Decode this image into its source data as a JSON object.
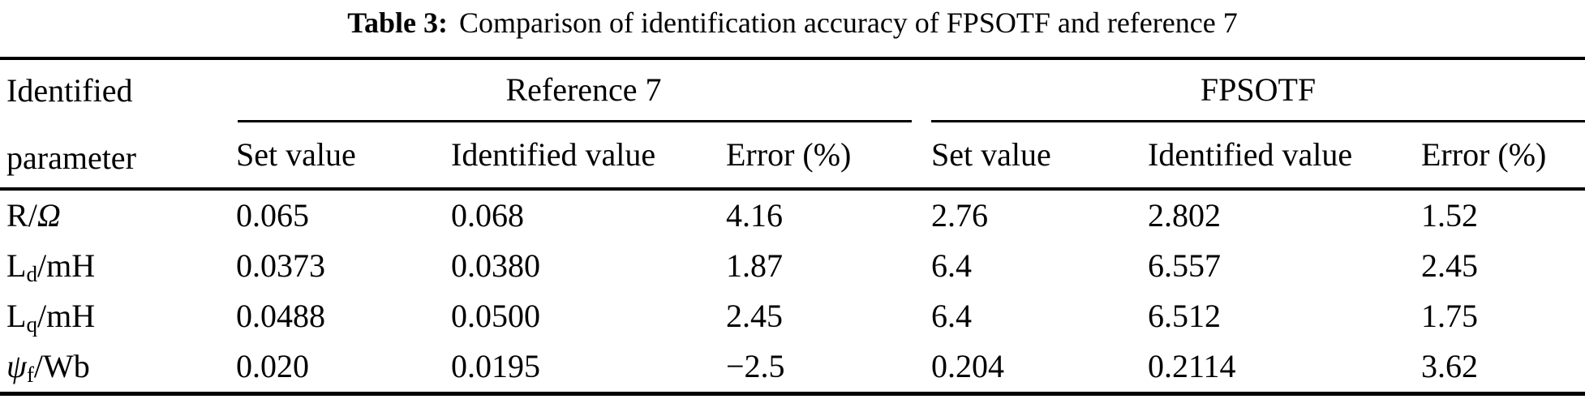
{
  "title": {
    "bold": "Table 3:",
    "text": "Comparison of identification accuracy of FPSOTF and reference 7"
  },
  "table": {
    "row_header": {
      "line1": "Identified",
      "line2": "parameter"
    },
    "groups": [
      {
        "label": "Reference 7"
      },
      {
        "label": "FPSOTF"
      }
    ],
    "subheaders": [
      "Set value",
      "Identified value",
      "Error (%)",
      "Set value",
      "Identified value",
      "Error (%)"
    ],
    "rows": [
      {
        "param": [
          {
            "t": "R",
            "style": "normal"
          },
          {
            "t": "/",
            "style": "normal"
          },
          {
            "t": "Ω",
            "style": "italic"
          }
        ],
        "values": [
          "0.065",
          "0.068",
          "4.16",
          "2.76",
          "2.802",
          "1.52"
        ]
      },
      {
        "param": [
          {
            "t": "L",
            "style": "normal"
          },
          {
            "t": "d",
            "style": "sub"
          },
          {
            "t": "/mH",
            "style": "normal"
          }
        ],
        "values": [
          "0.0373",
          "0.0380",
          "1.87",
          "6.4",
          "6.557",
          "2.45"
        ]
      },
      {
        "param": [
          {
            "t": "L",
            "style": "normal"
          },
          {
            "t": "q",
            "style": "sub"
          },
          {
            "t": "/mH",
            "style": "normal"
          }
        ],
        "values": [
          "0.0488",
          "0.0500",
          "2.45",
          "6.4",
          "6.512",
          "1.75"
        ]
      },
      {
        "param": [
          {
            "t": "ψ",
            "style": "italic"
          },
          {
            "t": "f",
            "style": "sub"
          },
          {
            "t": "/Wb",
            "style": "normal"
          }
        ],
        "values": [
          "0.020",
          "0.0195",
          "−2.5",
          "0.204",
          "0.2114",
          "3.62"
        ]
      }
    ]
  },
  "chart_data": {
    "type": "table",
    "title": "Table 3: Comparison of identification accuracy of FPSOTF and reference 7",
    "column_groups": [
      "Reference 7",
      "FPSOTF"
    ],
    "columns": [
      "Identified parameter",
      "Reference 7 — Set value",
      "Reference 7 — Identified value",
      "Reference 7 — Error (%)",
      "FPSOTF — Set value",
      "FPSOTF — Identified value",
      "FPSOTF — Error (%)"
    ],
    "rows": [
      [
        "R/Ω",
        "0.065",
        "0.068",
        "4.16",
        "2.76",
        "2.802",
        "1.52"
      ],
      [
        "Ld/mH",
        "0.0373",
        "0.0380",
        "1.87",
        "6.4",
        "6.557",
        "2.45"
      ],
      [
        "Lq/mH",
        "0.0488",
        "0.0500",
        "2.45",
        "6.4",
        "6.512",
        "1.75"
      ],
      [
        "ψf/Wb",
        "0.020",
        "0.0195",
        "−2.5",
        "0.204",
        "0.2114",
        "3.62"
      ]
    ]
  }
}
